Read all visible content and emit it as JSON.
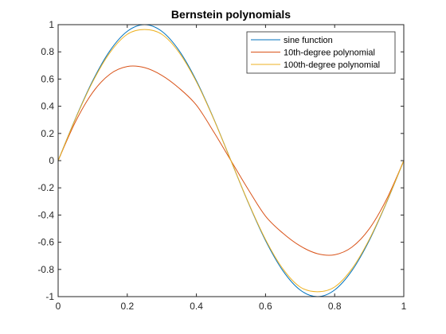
{
  "chart_data": {
    "type": "line",
    "title": "Bernstein polynomials",
    "xlabel": "",
    "ylabel": "",
    "xlim": [
      0,
      1
    ],
    "ylim": [
      -1,
      1
    ],
    "x_ticks": [
      0,
      0.2,
      0.4,
      0.6,
      0.8,
      1
    ],
    "x_tick_labels": [
      "0",
      "0.2",
      "0.4",
      "0.6",
      "0.8",
      "1"
    ],
    "y_ticks": [
      -1,
      -0.8,
      -0.6,
      -0.4,
      -0.2,
      0,
      0.2,
      0.4,
      0.6,
      0.8,
      1
    ],
    "y_tick_labels": [
      "-1",
      "-0.8",
      "-0.6",
      "-0.4",
      "-0.2",
      "0",
      "0.2",
      "0.4",
      "0.6",
      "0.8",
      "1"
    ],
    "grid": false,
    "legend_position": "top-right",
    "x": [
      0,
      0.05,
      0.1,
      0.15,
      0.2,
      0.25,
      0.3,
      0.35,
      0.4,
      0.45,
      0.5,
      0.55,
      0.6,
      0.65,
      0.7,
      0.75,
      0.8,
      0.85,
      0.9,
      0.95,
      1
    ],
    "series": [
      {
        "name": "sine function",
        "color": "#0072BD",
        "values": [
          0,
          0.309,
          0.588,
          0.809,
          0.951,
          1.0,
          0.951,
          0.809,
          0.588,
          0.309,
          0,
          -0.309,
          -0.588,
          -0.809,
          -0.951,
          -1.0,
          -0.951,
          -0.809,
          -0.588,
          -0.309,
          0
        ]
      },
      {
        "name": "10th-degree polynomial",
        "color": "#D95319",
        "values": [
          0,
          0.285,
          0.502,
          0.636,
          0.692,
          0.684,
          0.627,
          0.533,
          0.408,
          0.212,
          0,
          -0.212,
          -0.408,
          -0.533,
          -0.627,
          -0.684,
          -0.692,
          -0.636,
          -0.502,
          -0.285,
          0
        ]
      },
      {
        "name": "100th-degree polynomial",
        "color": "#EDB120",
        "values": [
          0,
          0.306,
          0.58,
          0.795,
          0.929,
          0.964,
          0.929,
          0.795,
          0.58,
          0.306,
          0,
          -0.306,
          -0.58,
          -0.795,
          -0.929,
          -0.964,
          -0.929,
          -0.795,
          -0.58,
          -0.306,
          0
        ]
      }
    ]
  }
}
